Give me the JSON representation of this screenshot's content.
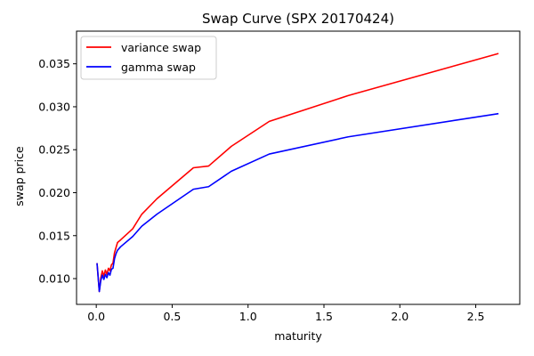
{
  "chart_data": {
    "type": "line",
    "title": "Swap Curve (SPX 20170424)",
    "xlabel": "maturity",
    "ylabel": "swap price",
    "xlim": [
      -0.13,
      2.79
    ],
    "ylim": [
      0.007,
      0.0388
    ],
    "xticks": [
      0.0,
      0.5,
      1.0,
      1.5,
      2.0,
      2.5
    ],
    "xtick_labels": [
      "0.0",
      "0.5",
      "1.0",
      "1.5",
      "2.0",
      "2.5"
    ],
    "yticks": [
      0.01,
      0.015,
      0.02,
      0.025,
      0.03,
      0.035
    ],
    "ytick_labels": [
      "0.010",
      "0.015",
      "0.020",
      "0.025",
      "0.030",
      "0.035"
    ],
    "grid": false,
    "legend_position": "top-left",
    "series": [
      {
        "name": "variance swap",
        "color": "#ff0000",
        "x": [
          0.005,
          0.02,
          0.03,
          0.04,
          0.05,
          0.06,
          0.07,
          0.08,
          0.09,
          0.1,
          0.11,
          0.12,
          0.13,
          0.14,
          0.16,
          0.24,
          0.3,
          0.4,
          0.64,
          0.74,
          0.89,
          1.14,
          1.66,
          2.65
        ],
        "y": [
          0.0118,
          0.0085,
          0.0101,
          0.0109,
          0.0103,
          0.011,
          0.0105,
          0.0112,
          0.0109,
          0.0116,
          0.0118,
          0.013,
          0.0136,
          0.0142,
          0.0145,
          0.0158,
          0.0175,
          0.0193,
          0.0229,
          0.0231,
          0.0254,
          0.0283,
          0.0313,
          0.0362
        ]
      },
      {
        "name": "gamma swap",
        "color": "#0000ff",
        "x": [
          0.005,
          0.02,
          0.03,
          0.04,
          0.05,
          0.06,
          0.07,
          0.08,
          0.09,
          0.1,
          0.11,
          0.12,
          0.13,
          0.14,
          0.16,
          0.24,
          0.3,
          0.4,
          0.64,
          0.74,
          0.89,
          1.14,
          1.66,
          2.65
        ],
        "y": [
          0.0118,
          0.0085,
          0.0098,
          0.0104,
          0.0099,
          0.0105,
          0.0101,
          0.0107,
          0.0104,
          0.0111,
          0.0112,
          0.0123,
          0.0129,
          0.0133,
          0.0137,
          0.0149,
          0.0161,
          0.0175,
          0.0204,
          0.0207,
          0.0225,
          0.0245,
          0.0265,
          0.0292
        ]
      }
    ]
  }
}
